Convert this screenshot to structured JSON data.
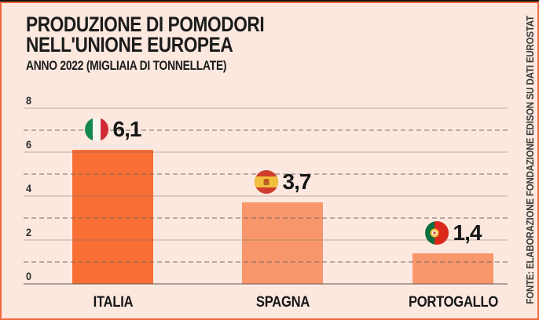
{
  "header": {
    "title_line1": "PRODUZIONE DI POMODORI",
    "title_line2": "NELL'UNIONE EUROPEA",
    "subtitle": "ANNO 2022 (MIGLIAIA DI TONNELLATE)"
  },
  "source": {
    "text": "FONTE: ELABORAZIONE FONDAZIONE EDISON SU DATI EUROSTAT"
  },
  "chart_data": {
    "type": "bar",
    "title": "PRODUZIONE DI POMODORI NELL'UNIONE EUROPEA",
    "subtitle": "ANNO 2022 (MIGLIAIA DI TONNELLATE)",
    "categories": [
      "ITALIA",
      "SPAGNA",
      "PORTOGALLO"
    ],
    "values": [
      6.1,
      3.7,
      1.4
    ],
    "value_labels": [
      "6,1",
      "3,7",
      "1,4"
    ],
    "flags": [
      "italy-flag",
      "spain-flag",
      "portugal-flag"
    ],
    "ylim": [
      0,
      8
    ],
    "yticks": [
      0,
      2,
      4,
      6,
      8
    ],
    "grid": "solid lines at even values, dashed lines at odd values, horizontal only",
    "legend": "none",
    "bar_colors": [
      "#f76f35",
      "#f9976c",
      "#f9976c"
    ]
  },
  "colors": {
    "background": "#fce8de",
    "border": "#f2683c",
    "top_strip": "#111111",
    "bar_primary": "#f76f35",
    "bar_secondary": "#f9976c",
    "text": "#161616",
    "grid_solid": "#d2c5bd",
    "grid_dashed": "#a89d95"
  }
}
